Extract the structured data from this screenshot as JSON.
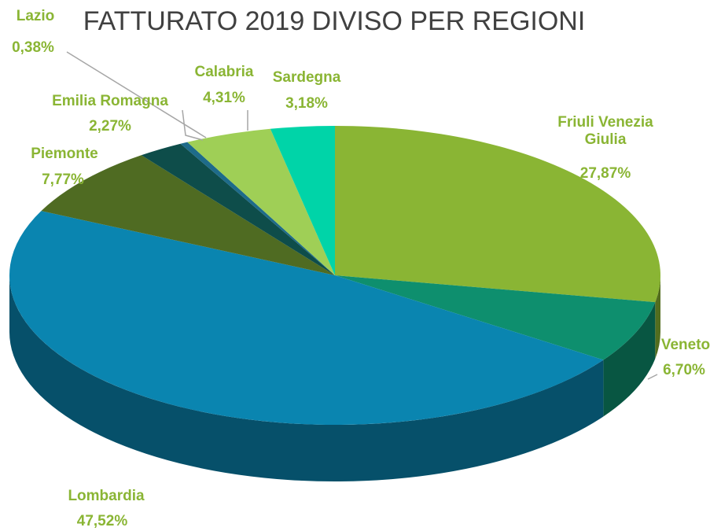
{
  "chart_data": {
    "type": "pie",
    "title": "FATTURATO 2019 DIVISO PER REGIONI",
    "categories": [
      "Friuli Venezia Giulia",
      "Veneto",
      "Lombardia",
      "Piemonte",
      "Emilia Romagna",
      "Lazio",
      "Calabria",
      "Sardegna"
    ],
    "values": [
      27.87,
      6.7,
      47.52,
      7.77,
      2.27,
      0.38,
      4.31,
      3.18
    ],
    "value_labels": [
      "27,87%",
      "6,70%",
      "47,52%",
      "7,77%",
      "2,27%",
      "0,38%",
      "4,31%",
      "3,18%"
    ],
    "colors": [
      "#8ab534",
      "#0e8f6e",
      "#0a85b0",
      "#4f6b22",
      "#0e4d4a",
      "#1e6b8a",
      "#9fcf56",
      "#00d4a8"
    ],
    "label_color": "#8ab534"
  }
}
